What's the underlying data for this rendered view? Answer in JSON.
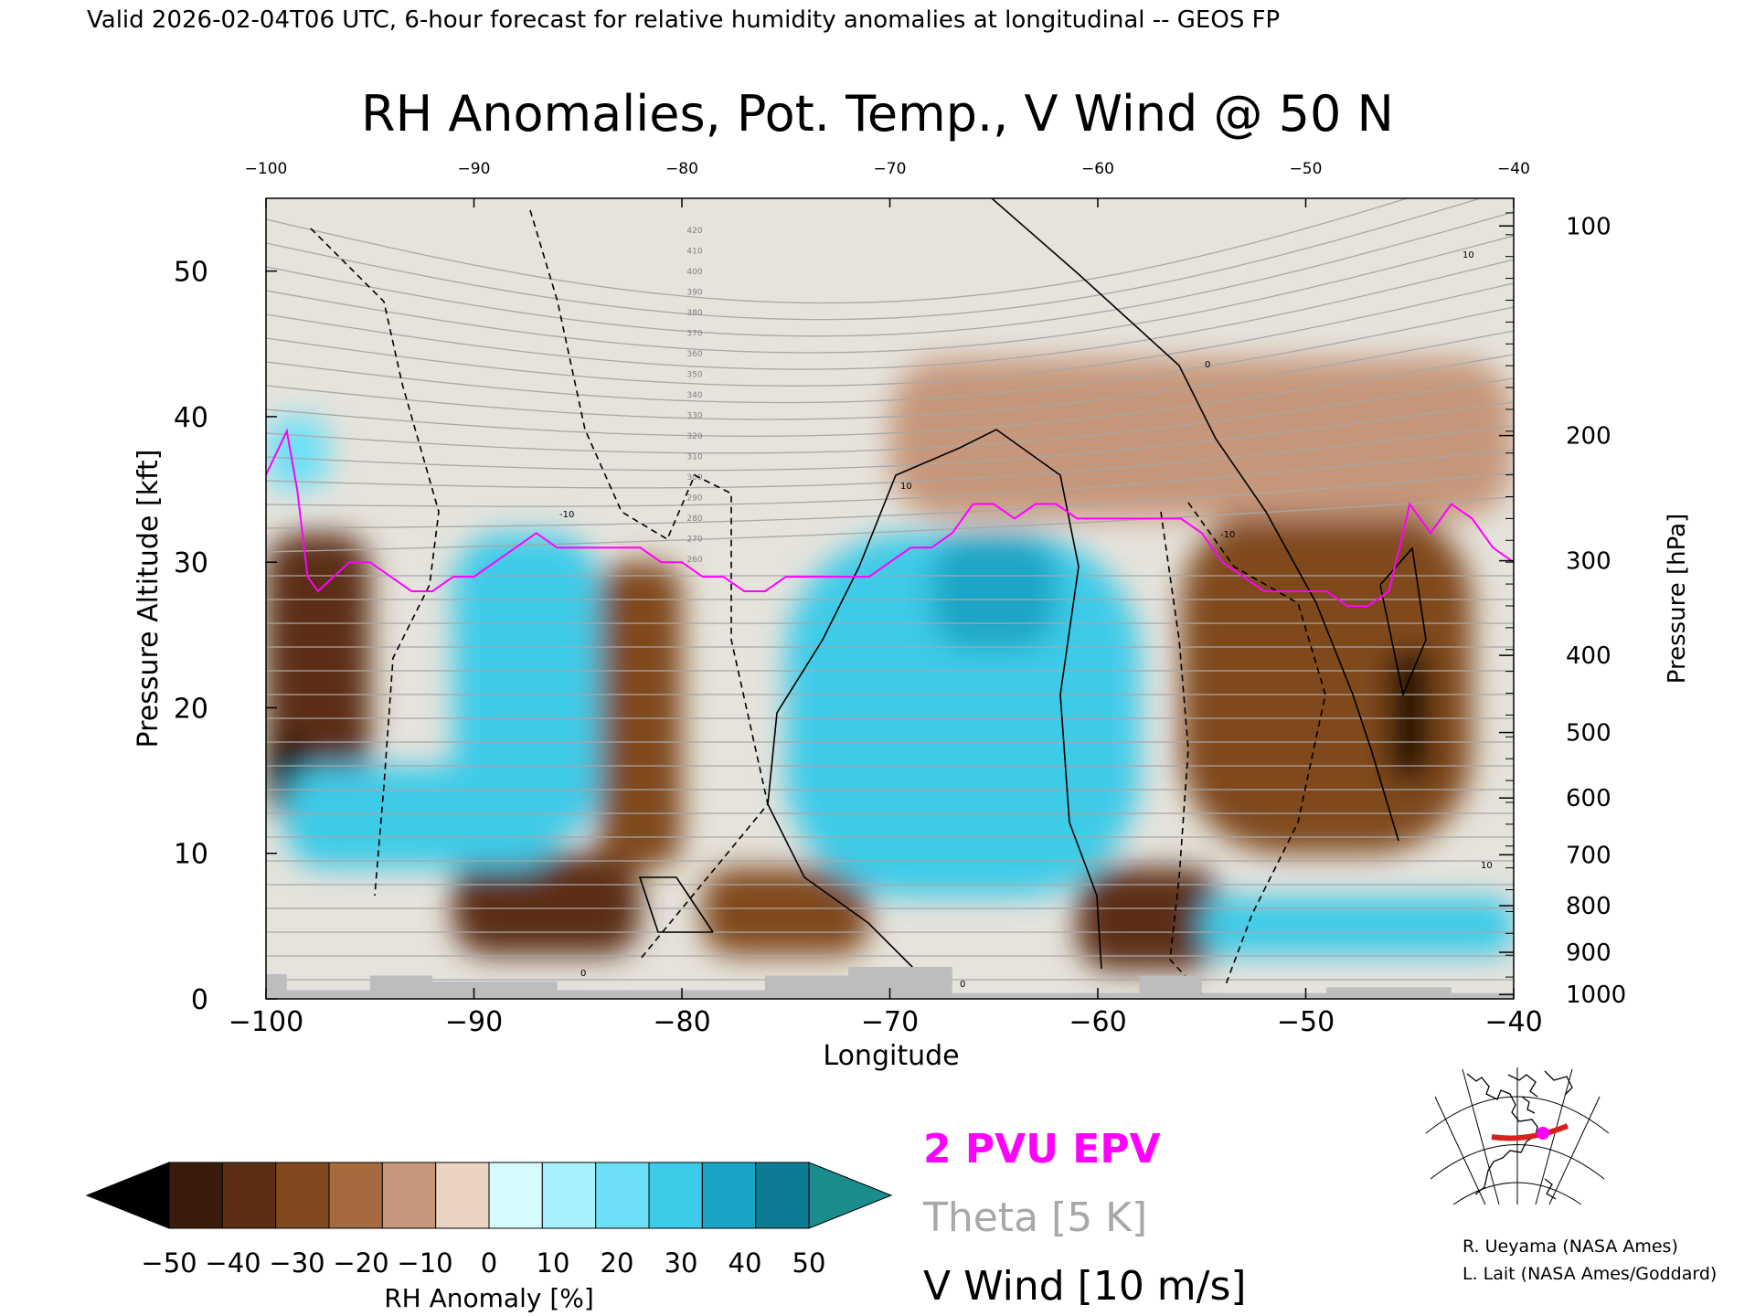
{
  "header": "Valid 2026-02-04T06 UTC, 6-hour forecast for relative humidity anomalies at longitudinal -- GEOS FP",
  "chart_data": {
    "type": "heatmap",
    "title": "RH Anomalies, Pot. Temp., V Wind @ 50 N",
    "xlabel": "Longitude",
    "ylabel_left": "Pressure Altitude [kft]",
    "ylabel_right": "Pressure [hPa]",
    "xlim": [
      -100,
      -40
    ],
    "ylim": [
      0,
      55
    ],
    "x_ticks_bottom": [
      "-100",
      "-90",
      "-80",
      "-70",
      "-60",
      "-50",
      "-40"
    ],
    "x_ticks_top": [
      "-100",
      "-90",
      "-80",
      "-70",
      "-60",
      "-50",
      "-40"
    ],
    "y_ticks_left": [
      "0",
      "10",
      "20",
      "30",
      "40",
      "50"
    ],
    "y_ticks_right": [
      {
        "label": "100",
        "kft": 53.1
      },
      {
        "label": "200",
        "kft": 38.7
      },
      {
        "label": "300",
        "kft": 30.1
      },
      {
        "label": "400",
        "kft": 23.6
      },
      {
        "label": "500",
        "kft": 18.3
      },
      {
        "label": "600",
        "kft": 13.8
      },
      {
        "label": "700",
        "kft": 9.9
      },
      {
        "label": "800",
        "kft": 6.4
      },
      {
        "label": "900",
        "kft": 3.2
      },
      {
        "label": "1000",
        "kft": 0.3
      }
    ],
    "theta_contour_labels": [
      "420",
      "410",
      "400",
      "390",
      "380",
      "370",
      "360",
      "350",
      "340",
      "330",
      "320",
      "310",
      "300",
      "290",
      "280",
      "270",
      "260"
    ],
    "wind_contour_labels": [
      "0",
      "10",
      "-10"
    ],
    "rh_regions": [
      {
        "anomaly": -40,
        "lon": [
          -100,
          -95
        ],
        "kft": [
          12,
          32
        ]
      },
      {
        "anomaly": -50,
        "lon": [
          -100,
          -98
        ],
        "kft": [
          14,
          18
        ]
      },
      {
        "anomaly": -40,
        "lon": [
          -91,
          -82
        ],
        "kft": [
          3,
          10
        ]
      },
      {
        "anomaly": -30,
        "lon": [
          -84,
          -80
        ],
        "kft": [
          9,
          30
        ]
      },
      {
        "anomaly": -30,
        "lon": [
          -79,
          -71
        ],
        "kft": [
          3,
          9
        ]
      },
      {
        "anomaly": -40,
        "lon": [
          -61,
          -54
        ],
        "kft": [
          2,
          9
        ]
      },
      {
        "anomaly": -30,
        "lon": [
          -56,
          -42
        ],
        "kft": [
          10,
          34
        ]
      },
      {
        "anomaly": -45,
        "lon": [
          -46,
          -44
        ],
        "kft": [
          15,
          24
        ]
      },
      {
        "anomaly": -15,
        "lon": [
          -70,
          -40
        ],
        "kft": [
          33,
          44
        ]
      },
      {
        "anomaly": 30,
        "lon": [
          -99,
          -86
        ],
        "kft": [
          9,
          16
        ]
      },
      {
        "anomaly": 30,
        "lon": [
          -91,
          -84
        ],
        "kft": [
          11,
          32
        ]
      },
      {
        "anomaly": 30,
        "lon": [
          -75,
          -58
        ],
        "kft": [
          7,
          32
        ]
      },
      {
        "anomaly": 40,
        "lon": [
          -68,
          -62
        ],
        "kft": [
          24,
          32
        ]
      },
      {
        "anomaly": 30,
        "lon": [
          -55,
          -40
        ],
        "kft": [
          3,
          7
        ]
      },
      {
        "anomaly": 20,
        "lon": [
          -100,
          -97
        ],
        "kft": [
          35,
          40
        ]
      }
    ],
    "epv_2pvu_line": {
      "lon": [
        -100,
        -99,
        -98.5,
        -98,
        -97.5,
        -96,
        -95,
        -93,
        -92,
        -91,
        -90,
        -89,
        -88,
        -87,
        -86,
        -85,
        -84,
        -83,
        -82,
        -81,
        -80,
        -79,
        -78,
        -77,
        -76,
        -75,
        -74,
        -73,
        -72,
        -71,
        -70,
        -69,
        -68,
        -67,
        -66,
        -65,
        -64,
        -63,
        -62,
        -61,
        -60,
        -59,
        -58,
        -57,
        -56,
        -55,
        -54,
        -53,
        -52,
        -51,
        -50,
        -49,
        -48,
        -47,
        -46,
        -45,
        -44,
        -43,
        -42,
        -41,
        -40
      ],
      "kft": [
        36,
        39,
        35,
        29,
        28,
        30,
        30,
        28,
        28,
        29,
        29,
        30,
        31,
        32,
        31,
        31,
        31,
        31,
        31,
        30,
        30,
        29,
        29,
        28,
        28,
        29,
        29,
        29,
        29,
        29,
        30,
        31,
        31,
        32,
        34,
        34,
        33,
        34,
        34,
        33,
        33,
        33,
        33,
        33,
        33,
        32,
        30,
        29,
        28,
        28,
        28,
        28,
        27,
        27,
        28,
        34,
        32,
        34,
        33,
        31,
        30
      ]
    },
    "legend": [
      "2 PVU EPV",
      "Theta [5 K]",
      "V Wind [10 m/s]"
    ],
    "colorbar": {
      "label": "RH Anomaly [%]",
      "ticks": [
        "-50",
        "-40",
        "-30",
        "-20",
        "-10",
        "0",
        "10",
        "20",
        "30",
        "40",
        "50"
      ],
      "colors": [
        "#3a1c0c",
        "#5c2f14",
        "#80491f",
        "#a56b3f",
        "#c6977a",
        "#e9d3c3",
        "#d5fbff",
        "#a6f0ff",
        "#6de0f7",
        "#3ccbe8",
        "#1aa5c6",
        "#0c7b94"
      ],
      "under_color": "#000000",
      "over_color": "#1a8c8c"
    }
  },
  "colors": {
    "epv": "#ff00ff",
    "theta": "#a8a8a8",
    "wind": "#000000",
    "ground": "#bdbdbd",
    "track": "#d62020"
  },
  "credits": [
    "R. Ueyama (NASA Ames)",
    "L. Lait (NASA Ames/Goddard)"
  ]
}
